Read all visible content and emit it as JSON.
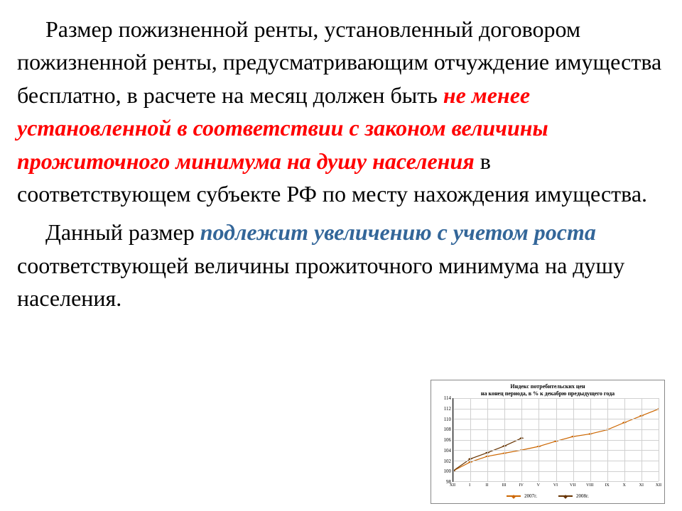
{
  "para1": {
    "t1": "Размер пожизненной ренты, установленный договором пожизненной ренты, предусматривающим отчуждение имущества бесплатно, в расчете на месяц должен быть ",
    "red": "не менее установленной в соответствии с законом величины прожиточного минимума на душу населения",
    "t2": " в соответствующем субъекте РФ по месту нахождения имущества."
  },
  "para2": {
    "t1": "Данный размер ",
    "blue": "подлежит увеличению с учетом роста",
    "t2": " соответствующей величины прожиточного минимума на душу населения."
  },
  "chart": {
    "title_l1": "Индекс потребительских цен",
    "title_l2": "на конец периода, в % к декабрю предыдущего года",
    "ylim": [
      98,
      114
    ],
    "yticks": [
      98,
      100,
      102,
      104,
      106,
      108,
      110,
      112,
      114
    ],
    "xlabels": [
      "XII",
      "I",
      "II",
      "III",
      "IV",
      "V",
      "VI",
      "VII",
      "VIII",
      "IX",
      "X",
      "XI",
      "XII"
    ],
    "bg": "#ffffff",
    "grid_color": "#d0d0d0",
    "series": [
      {
        "name": "2007г.",
        "color": "#cc6600",
        "values": [
          100.0,
          101.7,
          102.8,
          103.4,
          104.0,
          104.7,
          105.7,
          106.6,
          107.1,
          107.9,
          109.3,
          110.6,
          111.9
        ]
      },
      {
        "name": "2008г.",
        "color": "#663300",
        "values": [
          100.0,
          102.3,
          103.5,
          104.8,
          106.3,
          null,
          null,
          null,
          null,
          null,
          null,
          null,
          null
        ]
      }
    ]
  }
}
